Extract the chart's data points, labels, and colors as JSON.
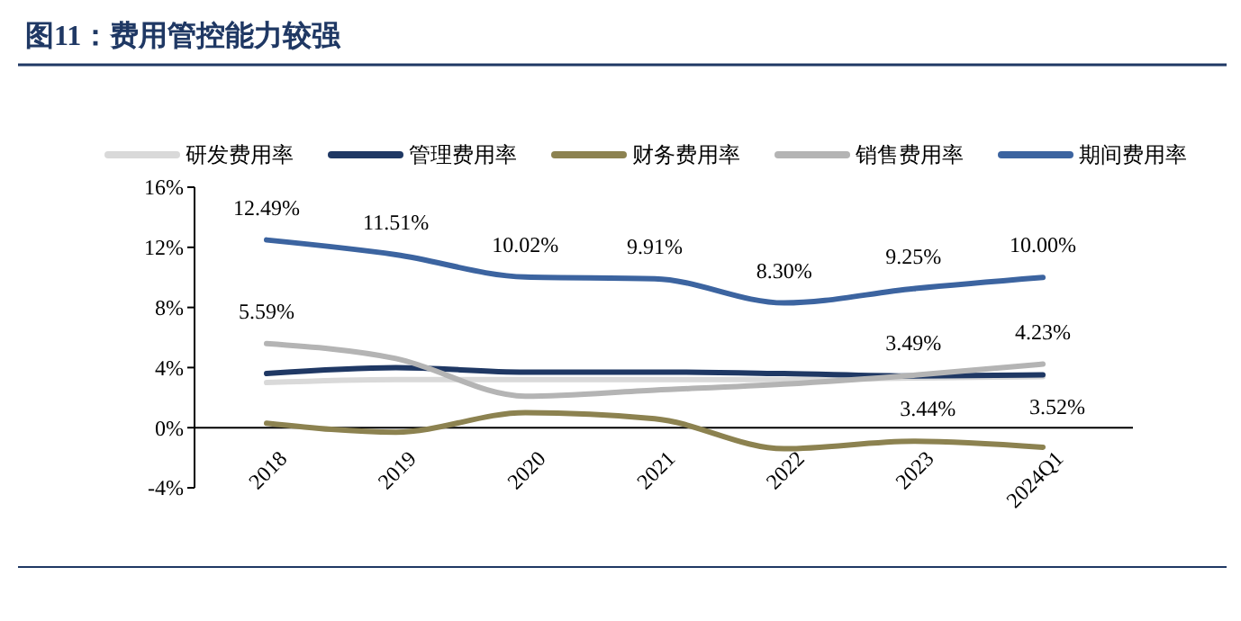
{
  "chart_data": {
    "type": "line",
    "title": "图11：费用管控能力较强",
    "categories": [
      "2018",
      "2019",
      "2020",
      "2021",
      "2022",
      "2023",
      "2024Q1"
    ],
    "series": [
      {
        "name": "研发费用率",
        "color": "#d9d9d9",
        "values": [
          3.0,
          3.2,
          3.2,
          3.2,
          3.2,
          3.3,
          3.4
        ]
      },
      {
        "name": "管理费用率",
        "color": "#1f3864",
        "values": [
          3.6,
          4.0,
          3.7,
          3.7,
          3.6,
          3.44,
          3.52
        ],
        "value_labels": [
          null,
          null,
          null,
          null,
          null,
          "3.44%",
          "3.52%"
        ]
      },
      {
        "name": "财务费用率",
        "color": "#8c8250",
        "values": [
          0.3,
          -0.3,
          1.0,
          0.6,
          -1.4,
          -0.9,
          -1.3
        ]
      },
      {
        "name": "销售费用率",
        "color": "#b4b4b4",
        "values": [
          5.59,
          4.6,
          2.1,
          2.5,
          2.9,
          3.49,
          4.23
        ],
        "value_labels": [
          "5.59%",
          null,
          null,
          null,
          null,
          "3.49%",
          "4.23%"
        ]
      },
      {
        "name": "期间费用率",
        "color": "#3c64a0",
        "values": [
          12.49,
          11.51,
          10.02,
          9.91,
          8.3,
          9.25,
          10.0
        ],
        "value_labels": [
          "12.49%",
          "11.51%",
          "10.02%",
          "9.91%",
          "8.30%",
          "9.25%",
          "10.00%"
        ]
      }
    ],
    "ylim": [
      -4,
      16
    ],
    "yticks": [
      {
        "value": -4,
        "label": "-4%"
      },
      {
        "value": 0,
        "label": "0%"
      },
      {
        "value": 4,
        "label": "4%"
      },
      {
        "value": 8,
        "label": "8%"
      },
      {
        "value": 12,
        "label": "12%"
      },
      {
        "value": 16,
        "label": "16%"
      }
    ],
    "grid": false,
    "legend": "top",
    "marker": "none",
    "line_style": "solid"
  }
}
